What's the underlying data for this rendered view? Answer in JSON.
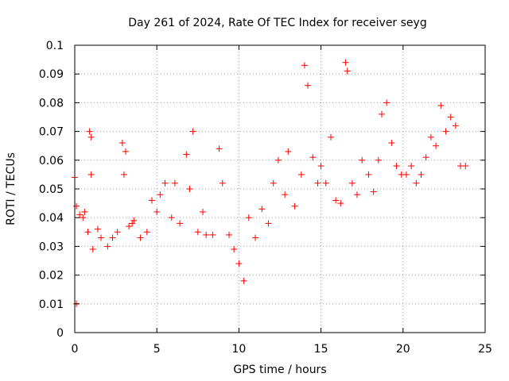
{
  "chart_data": {
    "type": "scatter",
    "title": "Day 261 of 2024, Rate Of TEC Index for receiver seyg",
    "xlabel": "GPS time / hours",
    "ylabel": "ROTI / TECUs",
    "xlim": [
      0,
      25
    ],
    "ylim": [
      0,
      0.1
    ],
    "x_ticks": [
      "0",
      "5",
      "10",
      "15",
      "20",
      "25"
    ],
    "y_ticks": [
      "0",
      "0.01",
      "0.02",
      "0.03",
      "0.04",
      "0.05",
      "0.06",
      "0.07",
      "0.08",
      "0.09",
      "0.1"
    ],
    "grid": true,
    "marker": "+",
    "color": "#ff0000",
    "series": [
      {
        "x": [
          0.0,
          0.1,
          0.1,
          0.3,
          0.5,
          0.6,
          0.8,
          0.9,
          1.0,
          1.0,
          1.1,
          1.4,
          1.6,
          2.0,
          2.3,
          2.6,
          2.9,
          3.0,
          3.1,
          3.3,
          3.5,
          3.6,
          4.0,
          4.4,
          4.7,
          5.0,
          5.2,
          5.5,
          5.9,
          6.1,
          6.4,
          6.8,
          7.0,
          7.2,
          7.5,
          7.8,
          8.0,
          8.4,
          8.8,
          9.0,
          9.4,
          9.7,
          10.0,
          10.3,
          10.6,
          11.0,
          11.4,
          11.8,
          12.1,
          12.4,
          12.8,
          13.0,
          13.4,
          13.8,
          14.0,
          14.2,
          14.5,
          14.8,
          15.0,
          15.3,
          15.6,
          15.9,
          16.2,
          16.5,
          16.6,
          16.9,
          17.2,
          17.5,
          17.9,
          18.2,
          18.5,
          18.7,
          19.0,
          19.3,
          19.6,
          19.9,
          20.2,
          20.5,
          20.8,
          21.1,
          21.4,
          21.7,
          22.0,
          22.3,
          22.6,
          22.9,
          23.2,
          23.5,
          23.8
        ],
        "y": [
          0.054,
          0.044,
          0.01,
          0.041,
          0.04,
          0.042,
          0.035,
          0.07,
          0.068,
          0.055,
          0.029,
          0.036,
          0.033,
          0.03,
          0.033,
          0.035,
          0.066,
          0.055,
          0.063,
          0.037,
          0.038,
          0.039,
          0.033,
          0.035,
          0.046,
          0.042,
          0.048,
          0.052,
          0.04,
          0.052,
          0.038,
          0.062,
          0.05,
          0.07,
          0.035,
          0.042,
          0.034,
          0.034,
          0.064,
          0.052,
          0.034,
          0.029,
          0.024,
          0.018,
          0.04,
          0.033,
          0.043,
          0.038,
          0.052,
          0.06,
          0.048,
          0.063,
          0.044,
          0.055,
          0.093,
          0.086,
          0.061,
          0.052,
          0.058,
          0.052,
          0.068,
          0.046,
          0.045,
          0.094,
          0.091,
          0.052,
          0.048,
          0.06,
          0.055,
          0.049,
          0.06,
          0.076,
          0.08,
          0.066,
          0.058,
          0.055,
          0.055,
          0.058,
          0.052,
          0.055,
          0.061,
          0.068,
          0.065,
          0.079,
          0.07,
          0.075,
          0.072,
          0.058,
          0.058
        ]
      }
    ]
  }
}
